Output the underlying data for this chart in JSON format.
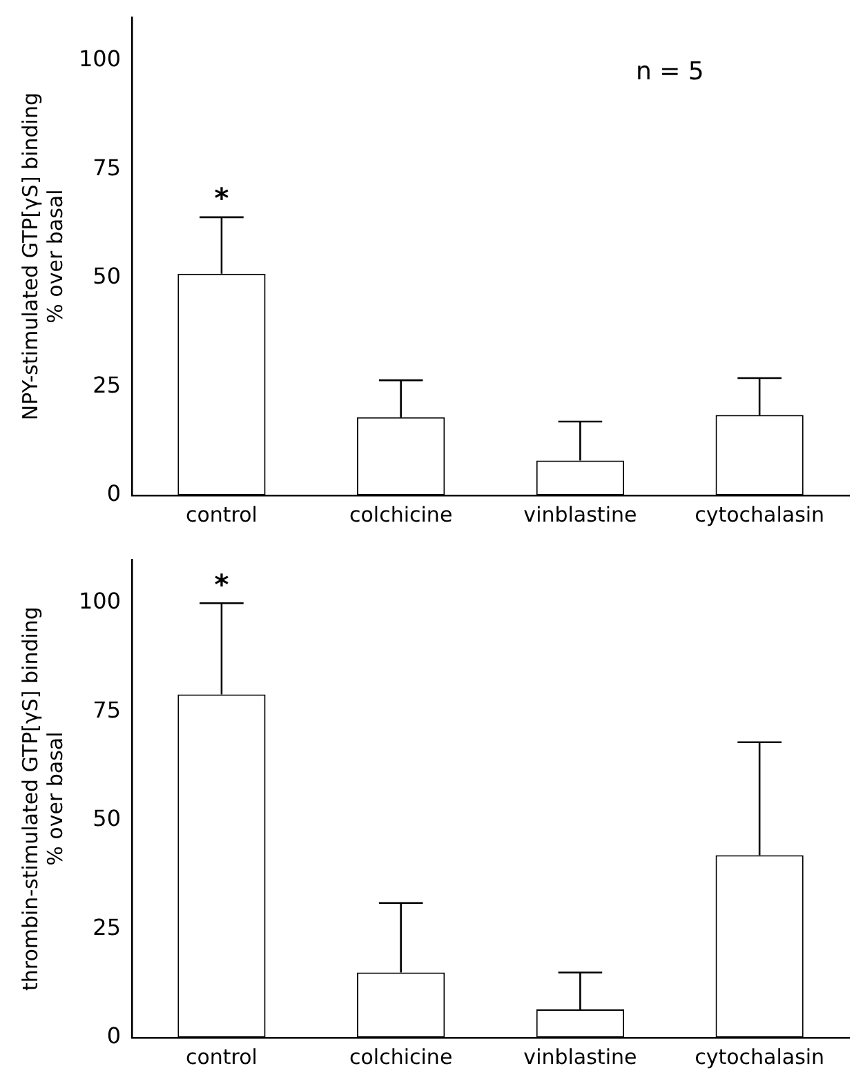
{
  "chart_data": [
    {
      "type": "bar",
      "ylabel": "NPY-stimulated GTP[γS] binding\n% over basal",
      "categories": [
        "control",
        "colchicine",
        "vinblastine",
        "cytochalasin"
      ],
      "values": [
        51,
        18,
        8,
        18.5
      ],
      "errors": [
        [
          51,
          64
        ],
        [
          18,
          26.5
        ],
        [
          8,
          17
        ],
        [
          18.5,
          27
        ]
      ],
      "color": "#ffffff",
      "ylim": [
        0,
        110
      ],
      "yticks": [
        0,
        25,
        50,
        75,
        100
      ],
      "grid": false,
      "legend": false,
      "annotations": [
        "*",
        "n = 5"
      ]
    },
    {
      "type": "bar",
      "ylabel": "thrombin-stimulated GTP[γS] binding\n% over basal",
      "categories": [
        "control",
        "colchicine",
        "vinblastine",
        "cytochalasin"
      ],
      "values": [
        79,
        15,
        6.5,
        42
      ],
      "errors": [
        [
          79,
          100
        ],
        [
          15,
          31
        ],
        [
          6.5,
          15
        ],
        [
          42,
          68
        ]
      ],
      "color": "#ffffff",
      "ylim": [
        0,
        110
      ],
      "yticks": [
        0,
        25,
        50,
        75,
        100
      ],
      "grid": false,
      "legend": false,
      "annotations": [
        "*"
      ]
    }
  ]
}
